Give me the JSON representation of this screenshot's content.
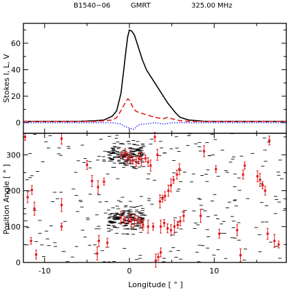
{
  "header": {
    "pulsar": "B1540−06",
    "telescope": "GMRT",
    "frequency": "325.00 MHz"
  },
  "chart_data": [
    {
      "type": "line",
      "ylabel": "Stokes I, L, V",
      "xlim": [
        -12.5,
        18.5
      ],
      "ylim": [
        -8,
        75
      ],
      "yticks": [
        0,
        20,
        40,
        60
      ],
      "series": [
        {
          "style": "solid",
          "color": "#000000",
          "x": [
            -12.5,
            -6,
            -4,
            -3,
            -2,
            -1.5,
            -1,
            -0.7,
            -0.4,
            -0.2,
            0,
            0.3,
            0.6,
            1,
            1.5,
            2,
            2.5,
            3,
            3.5,
            4,
            4.5,
            5,
            5.5,
            6,
            7,
            9,
            12,
            18.5
          ],
          "y": [
            1,
            1,
            1.5,
            2,
            5,
            9,
            22,
            38,
            55,
            65,
            70,
            69,
            66,
            58,
            48,
            40,
            35,
            30,
            25,
            20,
            15,
            11,
            7,
            4,
            2,
            1,
            1,
            1
          ]
        },
        {
          "style": "dashed",
          "color": "#e41a1c",
          "x": [
            -12.5,
            -4,
            -2,
            -1.5,
            -1,
            -0.5,
            -0.2,
            0,
            0.3,
            0.7,
            1,
            1.5,
            2,
            2.5,
            3,
            3.5,
            4,
            4.5,
            5,
            6,
            7,
            9,
            18.5
          ],
          "y": [
            1,
            1,
            2,
            4,
            9,
            15,
            18,
            17,
            13,
            9,
            8,
            7,
            6,
            5,
            4,
            3.5,
            3,
            4,
            3,
            1.5,
            1,
            1,
            1
          ]
        },
        {
          "style": "dotted",
          "color": "#3c3cff",
          "x": [
            -12.5,
            -4,
            -2,
            -1,
            -0.5,
            0,
            0.5,
            1,
            1.5,
            2,
            3,
            4,
            5,
            7,
            18.5
          ],
          "y": [
            0,
            0,
            0,
            -1,
            -3,
            -4,
            -5,
            -2,
            -1,
            -1,
            0,
            -1,
            0,
            0,
            0
          ]
        }
      ]
    },
    {
      "type": "scatter",
      "xlabel": "Longitude [ ° ]",
      "ylabel": "Position Angle [ ° ]",
      "xlim": [
        -12.5,
        18.5
      ],
      "ylim": [
        0,
        360
      ],
      "xticks": [
        -10,
        0,
        10
      ],
      "yticks": [
        0,
        100,
        200,
        300
      ],
      "points_x": [
        -12.3,
        -11.5,
        -12,
        -11.2,
        -11.6,
        -11,
        -8,
        -8,
        -8,
        -5,
        -4.4,
        -3.7,
        -3,
        -2.6,
        -3.6,
        -3.8,
        -0.9,
        -0.5,
        -0.2,
        0.1,
        0.4,
        0.8,
        1.1,
        1.4,
        1.9,
        2.2,
        2.5,
        -1,
        -0.6,
        -0.1,
        0.2,
        0.6,
        1,
        1.3,
        1.6,
        2.2,
        2.8,
        3,
        3.3,
        3.6,
        3.9,
        4.2,
        4.6,
        4.9,
        5.2,
        5.6,
        5.9,
        3.7,
        4.1,
        4.5,
        4.9,
        5.3,
        5.7,
        6,
        6.4,
        3.1,
        3.4,
        3.7,
        8.8,
        8.4,
        10.2,
        10.6,
        12.7,
        13.1,
        13.6,
        13.4,
        15.1,
        15.4,
        15.7,
        16,
        16.3,
        17.1,
        17.6,
        16.5
      ],
      "points_y": [
        350,
        202,
        182,
        150,
        60,
        22,
        345,
        160,
        100,
        272,
        227,
        210,
        225,
        55,
        60,
        25,
        300,
        305,
        290,
        295,
        285,
        280,
        290,
        288,
        290,
        280,
        270,
        125,
        118,
        120,
        115,
        118,
        120,
        112,
        105,
        100,
        100,
        350,
        300,
        170,
        178,
        185,
        200,
        215,
        230,
        245,
        260,
        100,
        110,
        95,
        90,
        100,
        105,
        115,
        130,
        5,
        15,
        28,
        310,
        130,
        260,
        80,
        90,
        20,
        270,
        245,
        240,
        230,
        215,
        200,
        80,
        60,
        50,
        340
      ],
      "shading": "black dashes = polarization position angle samples"
    }
  ]
}
